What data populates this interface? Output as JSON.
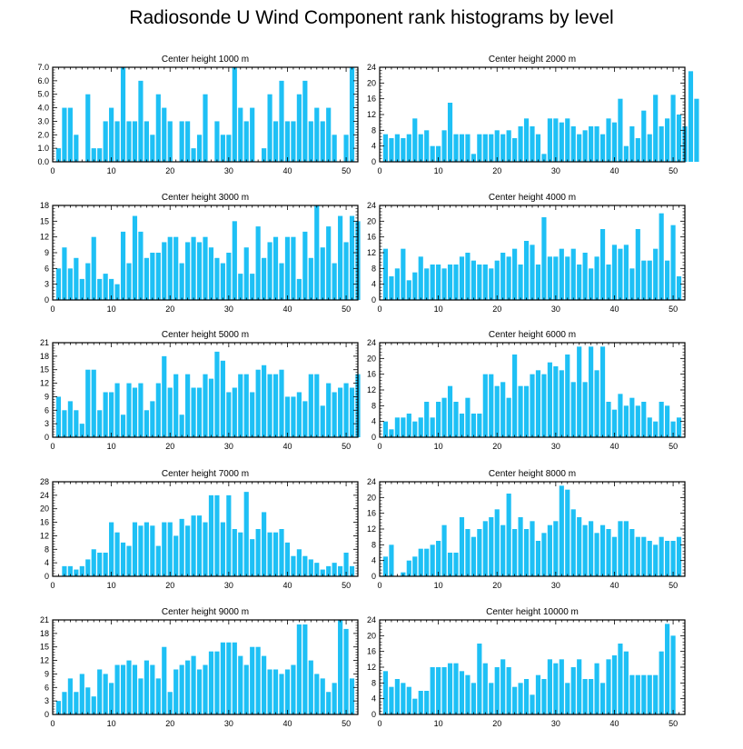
{
  "title": "Radiosonde U Wind Component rank histograms by level",
  "colors": {
    "bar": "#1ec0f5",
    "axis": "#000000"
  },
  "chart_data": [
    {
      "type": "bar",
      "title": "Center height 1000 m",
      "xlim": [
        0,
        52
      ],
      "ylim": [
        0,
        7
      ],
      "yticks": [
        0,
        1,
        2,
        3,
        4,
        5,
        6,
        7
      ],
      "ytick_labels": [
        "0.0",
        "1.0",
        "2.0",
        "3.0",
        "4.0",
        "5.0",
        "6.0",
        "7.0"
      ],
      "xticks": [
        0,
        10,
        20,
        30,
        40,
        50
      ],
      "values": [
        1,
        4,
        4,
        2,
        0,
        5,
        1,
        1,
        3,
        4,
        3,
        7,
        3,
        3,
        6,
        3,
        2,
        5,
        4,
        3,
        0,
        3,
        3,
        1,
        2,
        5,
        0,
        3,
        2,
        2,
        7,
        4,
        3,
        4,
        0,
        1,
        5,
        3,
        6,
        3,
        3,
        5,
        6,
        3,
        4,
        3,
        4,
        2,
        0,
        2,
        7
      ]
    },
    {
      "type": "bar",
      "title": "Center height 2000 m",
      "xlim": [
        0,
        52
      ],
      "ylim": [
        0,
        24
      ],
      "yticks": [
        0,
        4,
        8,
        12,
        16,
        20,
        24
      ],
      "ytick_labels": [
        "0",
        "4",
        "8",
        "12",
        "16",
        "20",
        "24"
      ],
      "xticks": [
        0,
        10,
        20,
        30,
        40,
        50
      ],
      "values": [
        7,
        6,
        7,
        6,
        7,
        11,
        7,
        8,
        4,
        4,
        8,
        15,
        7,
        7,
        7,
        2,
        7,
        7,
        7,
        8,
        7,
        8,
        6,
        9,
        11,
        9,
        7,
        2,
        11,
        11,
        10,
        11,
        9,
        7,
        8,
        9,
        9,
        7,
        11,
        10,
        16,
        4,
        9,
        6,
        13,
        7,
        17,
        9,
        11,
        17,
        12,
        9,
        23,
        16
      ]
    },
    {
      "type": "bar",
      "title": "Center height 3000 m",
      "xlim": [
        0,
        52
      ],
      "ylim": [
        0,
        18
      ],
      "yticks": [
        0,
        3,
        6,
        9,
        12,
        15,
        18
      ],
      "ytick_labels": [
        "0",
        "3",
        "6",
        "9",
        "12",
        "15",
        "18"
      ],
      "xticks": [
        0,
        10,
        20,
        30,
        40,
        50
      ],
      "values": [
        6,
        10,
        6,
        8,
        4,
        7,
        12,
        4,
        5,
        4,
        3,
        13,
        7,
        16,
        13,
        8,
        9,
        9,
        11,
        12,
        12,
        7,
        11,
        12,
        11,
        12,
        10,
        8,
        7,
        9,
        15,
        5,
        10,
        5,
        14,
        8,
        11,
        12,
        7,
        12,
        12,
        4,
        13,
        8,
        18,
        10,
        14,
        7,
        16,
        11,
        16,
        15
      ]
    },
    {
      "type": "bar",
      "title": "Center height 4000 m",
      "xlim": [
        0,
        52
      ],
      "ylim": [
        0,
        24
      ],
      "yticks": [
        0,
        4,
        8,
        12,
        16,
        20,
        24
      ],
      "ytick_labels": [
        "0",
        "4",
        "8",
        "12",
        "16",
        "20",
        "24"
      ],
      "xticks": [
        0,
        10,
        20,
        30,
        40,
        50
      ],
      "values": [
        13,
        6,
        8,
        13,
        5,
        7,
        11,
        8,
        9,
        9,
        8,
        9,
        9,
        11,
        12,
        10,
        9,
        9,
        8,
        10,
        12,
        11,
        13,
        9,
        15,
        14,
        9,
        21,
        11,
        11,
        13,
        11,
        13,
        9,
        12,
        8,
        11,
        18,
        9,
        14,
        13,
        14,
        8,
        18,
        10,
        10,
        13,
        22,
        10,
        19,
        6
      ]
    },
    {
      "type": "bar",
      "title": "Center height 5000 m",
      "xlim": [
        0,
        52
      ],
      "ylim": [
        0,
        21
      ],
      "yticks": [
        0,
        3,
        6,
        9,
        12,
        15,
        18,
        21
      ],
      "ytick_labels": [
        "0",
        "3",
        "6",
        "9",
        "12",
        "15",
        "18",
        "21"
      ],
      "xticks": [
        0,
        10,
        20,
        30,
        40,
        50
      ],
      "values": [
        9,
        6,
        8,
        6,
        3,
        15,
        15,
        6,
        10,
        10,
        12,
        5,
        12,
        11,
        12,
        6,
        8,
        12,
        18,
        11,
        14,
        5,
        14,
        11,
        11,
        14,
        13,
        19,
        17,
        10,
        11,
        14,
        14,
        10,
        15,
        16,
        14,
        14,
        15,
        9,
        9,
        10,
        8,
        14,
        14,
        7,
        12,
        10,
        11,
        12,
        11,
        14
      ]
    },
    {
      "type": "bar",
      "title": "Center height 6000 m",
      "xlim": [
        0,
        52
      ],
      "ylim": [
        0,
        24
      ],
      "yticks": [
        0,
        4,
        8,
        12,
        16,
        20,
        24
      ],
      "ytick_labels": [
        "0",
        "4",
        "8",
        "12",
        "16",
        "20",
        "24"
      ],
      "xticks": [
        0,
        10,
        20,
        30,
        40,
        50
      ],
      "values": [
        4,
        2,
        5,
        5,
        6,
        4,
        5,
        9,
        5,
        9,
        10,
        13,
        9,
        6,
        10,
        6,
        6,
        16,
        16,
        13,
        14,
        10,
        21,
        13,
        13,
        16,
        17,
        16,
        19,
        18,
        17,
        21,
        14,
        23,
        14,
        23,
        17,
        23,
        9,
        7,
        11,
        8,
        10,
        8,
        9,
        5,
        4,
        9,
        8,
        4,
        5
      ]
    },
    {
      "type": "bar",
      "title": "Center height 7000 m",
      "xlim": [
        0,
        52
      ],
      "ylim": [
        0,
        28
      ],
      "yticks": [
        0,
        4,
        8,
        12,
        16,
        20,
        24,
        28
      ],
      "ytick_labels": [
        "0",
        "4",
        "8",
        "12",
        "16",
        "20",
        "24",
        "28"
      ],
      "xticks": [
        0,
        10,
        20,
        30,
        40,
        50
      ],
      "values": [
        0,
        3,
        3,
        2,
        3,
        5,
        8,
        7,
        7,
        16,
        13,
        10,
        9,
        16,
        15,
        16,
        15,
        9,
        16,
        16,
        12,
        17,
        15,
        18,
        18,
        16,
        24,
        24,
        16,
        24,
        14,
        13,
        25,
        11,
        14,
        19,
        13,
        13,
        14,
        10,
        6,
        8,
        6,
        5,
        4,
        2,
        3,
        4,
        3,
        7,
        3
      ]
    },
    {
      "type": "bar",
      "title": "Center height 8000 m",
      "xlim": [
        0,
        52
      ],
      "ylim": [
        0,
        24
      ],
      "yticks": [
        0,
        4,
        8,
        12,
        16,
        20,
        24
      ],
      "ytick_labels": [
        "0",
        "4",
        "8",
        "12",
        "16",
        "20",
        "24"
      ],
      "xticks": [
        0,
        10,
        20,
        30,
        40,
        50
      ],
      "values": [
        5,
        8,
        0,
        1,
        4,
        5,
        7,
        7,
        8,
        9,
        13,
        6,
        6,
        15,
        12,
        10,
        12,
        14,
        15,
        17,
        13,
        21,
        12,
        15,
        12,
        14,
        9,
        11,
        13,
        14,
        23,
        22,
        17,
        15,
        13,
        14,
        11,
        13,
        12,
        10,
        14,
        14,
        12,
        10,
        10,
        9,
        8,
        10,
        9,
        9,
        10
      ]
    },
    {
      "type": "bar",
      "title": "Center height 9000 m",
      "xlim": [
        0,
        52
      ],
      "ylim": [
        0,
        21
      ],
      "yticks": [
        0,
        3,
        6,
        9,
        12,
        15,
        18,
        21
      ],
      "ytick_labels": [
        "0",
        "3",
        "6",
        "9",
        "12",
        "15",
        "18",
        "21"
      ],
      "xticks": [
        0,
        10,
        20,
        30,
        40,
        50
      ],
      "values": [
        3,
        5,
        8,
        5,
        9,
        6,
        4,
        10,
        9,
        7,
        11,
        11,
        12,
        11,
        8,
        12,
        11,
        8,
        15,
        5,
        10,
        11,
        12,
        13,
        10,
        11,
        14,
        14,
        16,
        16,
        16,
        13,
        11,
        15,
        15,
        13,
        10,
        10,
        9,
        10,
        11,
        20,
        20,
        12,
        9,
        8,
        5,
        7,
        21,
        19,
        8
      ]
    },
    {
      "type": "bar",
      "title": "Center height 10000 m",
      "xlim": [
        0,
        52
      ],
      "ylim": [
        0,
        24
      ],
      "yticks": [
        0,
        4,
        8,
        12,
        16,
        20,
        24
      ],
      "ytick_labels": [
        "0",
        "4",
        "8",
        "12",
        "16",
        "20",
        "24"
      ],
      "xticks": [
        0,
        10,
        20,
        30,
        40,
        50
      ],
      "values": [
        11,
        7,
        9,
        8,
        7,
        4,
        6,
        6,
        12,
        12,
        12,
        13,
        13,
        11,
        10,
        8,
        18,
        13,
        8,
        12,
        14,
        12,
        7,
        8,
        9,
        5,
        10,
        9,
        14,
        13,
        14,
        8,
        12,
        14,
        9,
        9,
        13,
        8,
        14,
        15,
        18,
        16,
        10,
        10,
        10,
        10,
        10,
        16,
        23,
        20
      ]
    }
  ]
}
